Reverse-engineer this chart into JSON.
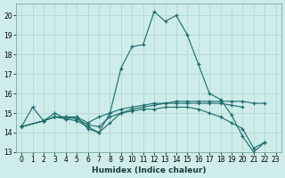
{
  "xlabel": "Humidex (Indice chaleur)",
  "bg_color": "#ceecea",
  "grid_color": "#b2d8d4",
  "line_color": "#1a6b6b",
  "xlim": [
    -0.5,
    23.5
  ],
  "ylim": [
    13.0,
    20.6
  ],
  "yticks": [
    13,
    14,
    15,
    16,
    17,
    18,
    19,
    20
  ],
  "xticks": [
    0,
    1,
    2,
    3,
    4,
    5,
    6,
    7,
    8,
    9,
    10,
    11,
    12,
    13,
    14,
    15,
    16,
    17,
    18,
    19,
    20,
    21,
    22,
    23
  ],
  "lines": [
    {
      "x": [
        0,
        1,
        2,
        3,
        4,
        5,
        6,
        7,
        8,
        9,
        10,
        11,
        12,
        13,
        14,
        15,
        16,
        17,
        18,
        19,
        20,
        21,
        22
      ],
      "y": [
        14.3,
        15.3,
        14.6,
        15.0,
        14.7,
        14.8,
        14.2,
        14.0,
        15.0,
        17.3,
        18.4,
        18.5,
        20.2,
        19.7,
        20.0,
        19.0,
        17.5,
        16.0,
        15.7,
        14.9,
        13.8,
        13.0,
        13.5
      ]
    },
    {
      "x": [
        0,
        2,
        3,
        4,
        5,
        6,
        7,
        8,
        9,
        10,
        11,
        12,
        13,
        14,
        15,
        16,
        17,
        18,
        19,
        20,
        21,
        22
      ],
      "y": [
        14.3,
        14.6,
        14.8,
        14.8,
        14.8,
        14.5,
        14.8,
        15.0,
        15.2,
        15.3,
        15.4,
        15.5,
        15.5,
        15.6,
        15.6,
        15.6,
        15.6,
        15.6,
        15.6,
        15.6,
        15.5,
        15.5
      ]
    },
    {
      "x": [
        0,
        2,
        3,
        4,
        5,
        6,
        7,
        8,
        9,
        10,
        11,
        12,
        13,
        14,
        15,
        16,
        17,
        18,
        19,
        20
      ],
      "y": [
        14.3,
        14.6,
        14.8,
        14.8,
        14.7,
        14.4,
        14.3,
        14.8,
        15.0,
        15.2,
        15.3,
        15.4,
        15.5,
        15.5,
        15.5,
        15.5,
        15.5,
        15.5,
        15.4,
        15.3
      ]
    },
    {
      "x": [
        0,
        2,
        3,
        4,
        5,
        6,
        7,
        8,
        9,
        10,
        11,
        12,
        13,
        14,
        15,
        16,
        17,
        18,
        19,
        20,
        21,
        22
      ],
      "y": [
        14.3,
        14.6,
        14.8,
        14.7,
        14.6,
        14.3,
        14.0,
        14.5,
        15.0,
        15.1,
        15.2,
        15.2,
        15.3,
        15.3,
        15.3,
        15.2,
        15.0,
        14.8,
        14.5,
        14.2,
        13.2,
        13.5
      ]
    }
  ]
}
